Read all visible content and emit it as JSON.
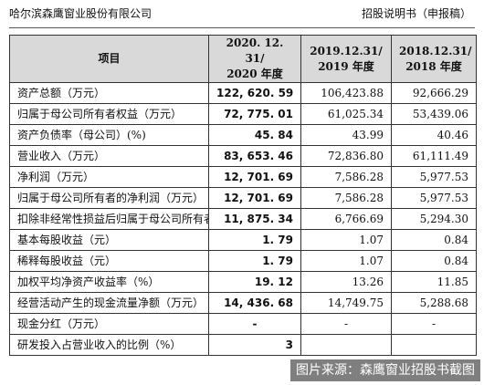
{
  "header": {
    "company": "哈尔滨森鹰窗业股份有限公司",
    "doc_title": "招股说明书（申报稿）"
  },
  "table": {
    "columns": [
      {
        "label_line1": "项目",
        "label_line2": ""
      },
      {
        "label_line1": "2020. 12. 31/",
        "label_line2": "2020 年度"
      },
      {
        "label_line1": "2019.12.31/",
        "label_line2": "2019 年度"
      },
      {
        "label_line1": "2018.12.31/",
        "label_line2": "2018 年度"
      }
    ],
    "rows": [
      {
        "item": "资产总额（万元）",
        "v2020": "122, 620. 59",
        "v2019": "106,423.88",
        "v2018": "92,666.29"
      },
      {
        "item": "归属于母公司所有者权益（万元）",
        "v2020": "72, 775. 01",
        "v2019": "61,025.34",
        "v2018": "53,439.06"
      },
      {
        "item": "资产负债率（母公司）(%)",
        "v2020": "45. 84",
        "v2019": "43.99",
        "v2018": "40.46"
      },
      {
        "item": "营业收入（万元）",
        "v2020": "83, 653. 46",
        "v2019": "72,836.80",
        "v2018": "61,111.49"
      },
      {
        "item": "净利润（万元）",
        "v2020": "12, 701. 69",
        "v2019": "7,586.28",
        "v2018": "5,977.53"
      },
      {
        "item": "归属于母公司所有者的净利润（万元）",
        "v2020": "12, 701. 69",
        "v2019": "7,586.28",
        "v2018": "5,977.53"
      },
      {
        "item": "扣除非经常性损益后归属于母公司所有者的净利润（万元）",
        "v2020": "11, 875. 34",
        "v2019": "6,766.69",
        "v2018": "5,294.30",
        "wrap": true
      },
      {
        "item": "基本每股收益（元）",
        "v2020": "1. 79",
        "v2019": "1.07",
        "v2018": "0.84"
      },
      {
        "item": "稀释每股收益（元）",
        "v2020": "1. 79",
        "v2019": "1.07",
        "v2018": "0.84"
      },
      {
        "item": "加权平均净资产收益率（%）",
        "v2020": "19. 12",
        "v2019": "13.26",
        "v2018": "11.85"
      },
      {
        "item": "经营活动产生的现金流量净额（万元）",
        "v2020": "14, 436. 68",
        "v2019": "14,749.75",
        "v2018": "5,288.68"
      },
      {
        "item": "现金分红（万元）",
        "v2020": "-",
        "v2019": "-",
        "v2018": "-"
      },
      {
        "item": "研发投入占营业收入的比例（%）",
        "v2020": "3",
        "v2019": "",
        "v2018": ""
      }
    ]
  },
  "watermark": "图片来源：森鹰窗业招股书截图"
}
